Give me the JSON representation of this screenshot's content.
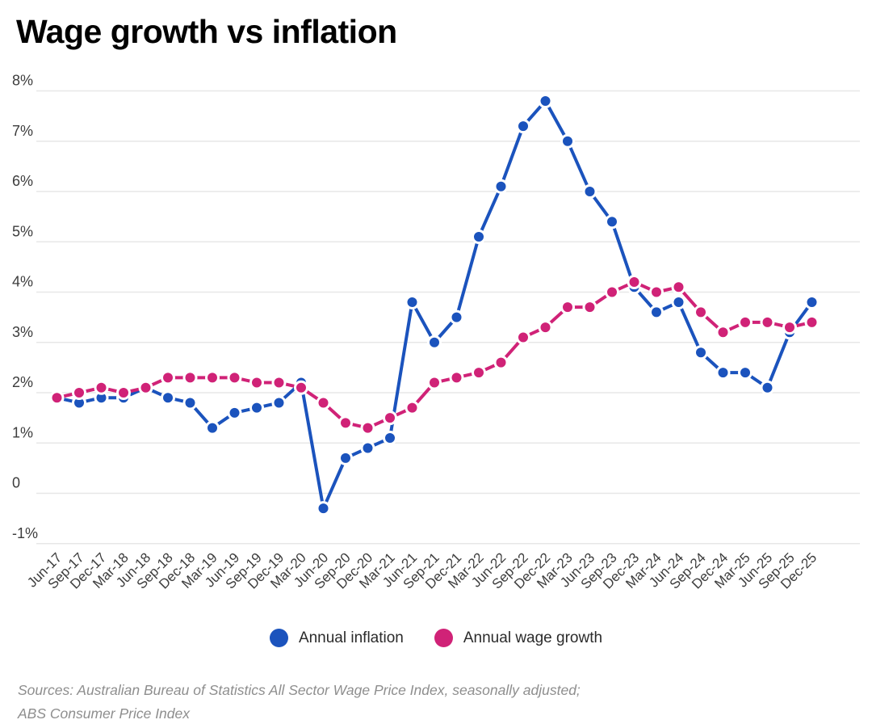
{
  "chart_data": {
    "type": "line",
    "title": "Wage growth vs inflation",
    "x_tick_labels": [
      "Jun-17",
      "Sep-17",
      "Dec-17",
      "Mar-18",
      "Jun-18",
      "Sep-18",
      "Dec-18",
      "Mar-19",
      "Jun-19",
      "Sep-19",
      "Dec-19",
      "Mar-20",
      "Jun-20",
      "Sep-20",
      "Dec-20",
      "Mar-21",
      "Jun-21",
      "Sep-21",
      "Dec-21",
      "Mar-22",
      "Jun-22",
      "Sep-22",
      "Dec-22",
      "Mar-23",
      "Jun-23",
      "Sep-23",
      "Dec-23",
      "Mar-24",
      "Jun-24",
      "Sep-24",
      "Dec-24",
      "Mar-25",
      "Jun-25",
      "Sep-25",
      "Dec-25"
    ],
    "series": [
      {
        "name": "Annual inflation",
        "color": "#1b53bd",
        "values": [
          1.9,
          1.8,
          1.9,
          1.9,
          2.1,
          1.9,
          1.8,
          1.3,
          1.6,
          1.7,
          1.8,
          2.2,
          -0.3,
          0.7,
          0.9,
          1.1,
          3.8,
          3.0,
          3.5,
          5.1,
          6.1,
          7.3,
          7.8,
          7.0,
          6.0,
          5.4,
          4.1,
          3.6,
          3.8,
          2.8,
          2.4,
          2.4,
          2.1,
          3.2,
          3.8
        ]
      },
      {
        "name": "Annual wage growth",
        "color": "#d02277",
        "values": [
          1.9,
          2.0,
          2.1,
          2.0,
          2.1,
          2.3,
          2.3,
          2.3,
          2.3,
          2.2,
          2.2,
          2.1,
          1.8,
          1.4,
          1.3,
          1.5,
          1.7,
          2.2,
          2.3,
          2.4,
          2.6,
          3.1,
          3.3,
          3.7,
          3.7,
          4.0,
          4.2,
          4.0,
          4.1,
          3.6,
          3.2,
          3.4,
          3.4,
          3.3,
          3.4
        ]
      }
    ],
    "y_ticks": [
      {
        "label": "8%",
        "value": 8
      },
      {
        "label": "7%",
        "value": 7
      },
      {
        "label": "6%",
        "value": 6
      },
      {
        "label": "5%",
        "value": 5
      },
      {
        "label": "4%",
        "value": 4
      },
      {
        "label": "3%",
        "value": 3
      },
      {
        "label": "2%",
        "value": 2
      },
      {
        "label": "1%",
        "value": 1
      },
      {
        "label": "0",
        "value": 0
      },
      {
        "label": "-1%",
        "value": -1
      }
    ],
    "ylim": [
      -1,
      8
    ],
    "grid": "horizontal",
    "legend_position": "bottom",
    "sources": [
      "Sources: Australian Bureau of Statistics All Sector Wage Price Index, seasonally adjusted;",
      "ABS Consumer Price Index"
    ],
    "text_colors": {
      "axis": "#3c3c3c",
      "grid": "#e7e7e7",
      "sources": "#8e8e8e"
    }
  }
}
